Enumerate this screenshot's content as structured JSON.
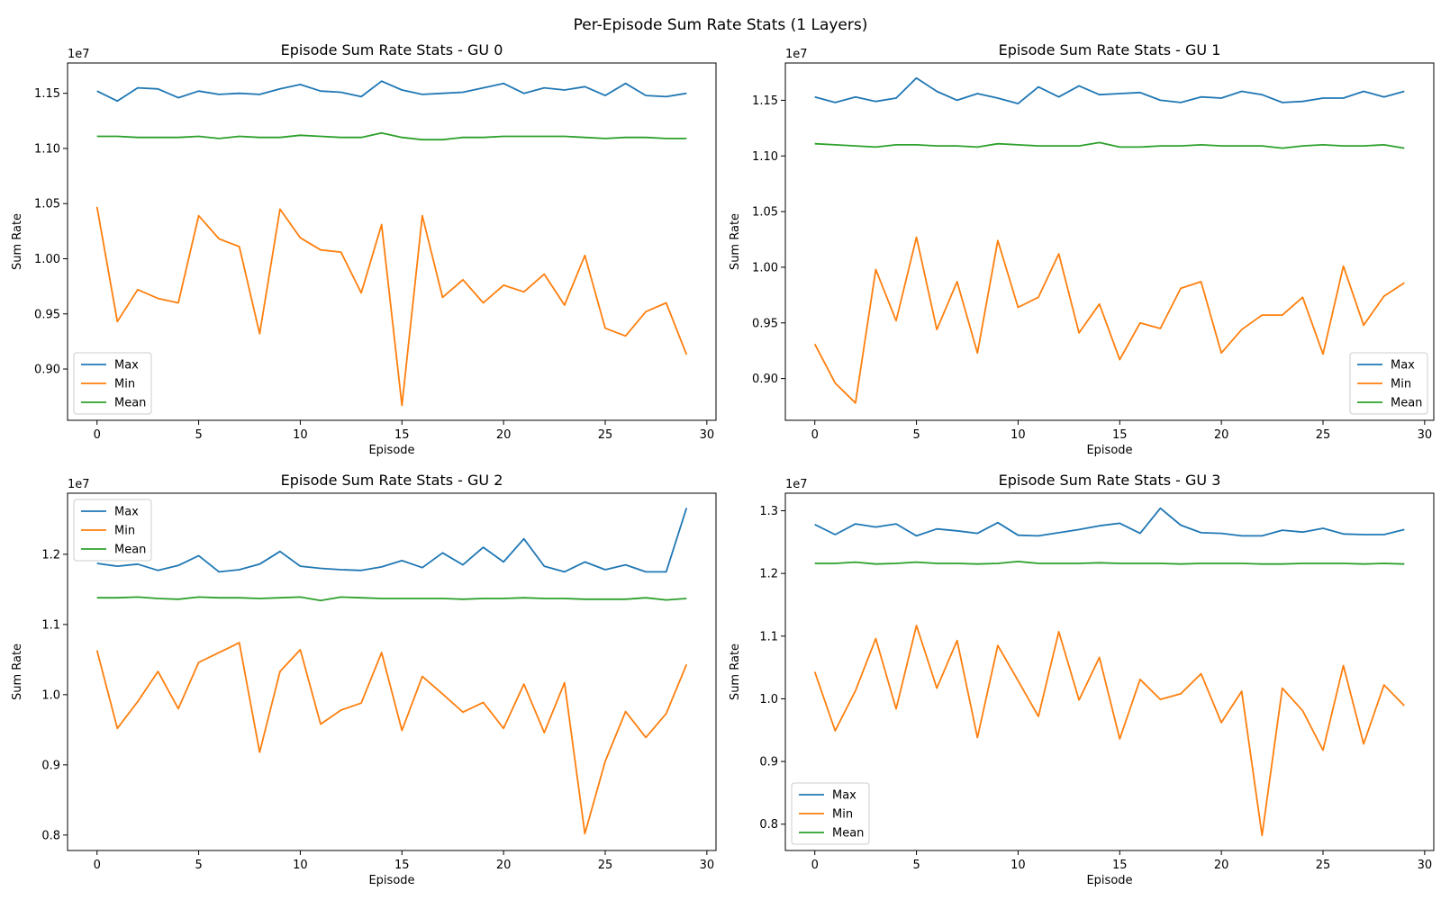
{
  "figure": {
    "suptitle": "Per-Episode Sum Rate Stats (1 Layers)"
  },
  "chart_data": [
    {
      "type": "line",
      "title": "Episode Sum Rate Stats - GU 0",
      "xlabel": "Episode",
      "ylabel": "Sum Rate",
      "offset_text": "1e7",
      "xlim": [
        -1.45,
        30.45
      ],
      "ylim": [
        0.8535,
        1.1775
      ],
      "xticks": [
        0,
        5,
        10,
        15,
        20,
        25,
        30
      ],
      "xtick_labels": [
        "0",
        "5",
        "10",
        "15",
        "20",
        "25",
        "30"
      ],
      "yticks": [
        0.9,
        0.95,
        1.0,
        1.05,
        1.1,
        1.15
      ],
      "ytick_labels": [
        "0.90",
        "0.95",
        "1.00",
        "1.05",
        "1.10",
        "1.15"
      ],
      "legend_loc": "lower left",
      "grid": false,
      "x": [
        0,
        1,
        2,
        3,
        4,
        5,
        6,
        7,
        8,
        9,
        10,
        11,
        12,
        13,
        14,
        15,
        16,
        17,
        18,
        19,
        20,
        21,
        22,
        23,
        24,
        25,
        26,
        27,
        28,
        29
      ],
      "series": [
        {
          "name": "Max",
          "color": "#1f77b4",
          "values": [
            1.152,
            1.143,
            1.155,
            1.154,
            1.146,
            1.152,
            1.149,
            1.15,
            1.149,
            1.154,
            1.158,
            1.152,
            1.151,
            1.147,
            1.161,
            1.153,
            1.149,
            1.15,
            1.151,
            1.155,
            1.159,
            1.15,
            1.155,
            1.153,
            1.156,
            1.148,
            1.159,
            1.148,
            1.147,
            1.15
          ]
        },
        {
          "name": "Min",
          "color": "#ff7f0e",
          "values": [
            1.047,
            0.943,
            0.972,
            0.964,
            0.96,
            1.039,
            1.018,
            1.011,
            0.932,
            1.045,
            1.019,
            1.008,
            1.006,
            0.969,
            1.031,
            0.867,
            1.039,
            0.965,
            0.981,
            0.96,
            0.976,
            0.97,
            0.986,
            0.958,
            1.003,
            0.937,
            0.93,
            0.952,
            0.96,
            0.913
          ]
        },
        {
          "name": "Mean",
          "color": "#2ca02c",
          "values": [
            1.111,
            1.111,
            1.11,
            1.11,
            1.11,
            1.111,
            1.109,
            1.111,
            1.11,
            1.11,
            1.112,
            1.111,
            1.11,
            1.11,
            1.114,
            1.11,
            1.108,
            1.108,
            1.11,
            1.11,
            1.111,
            1.111,
            1.111,
            1.111,
            1.11,
            1.109,
            1.11,
            1.11,
            1.109,
            1.109
          ]
        }
      ]
    },
    {
      "type": "line",
      "title": "Episode Sum Rate Stats - GU 1",
      "xlabel": "Episode",
      "ylabel": "Sum Rate",
      "offset_text": "1e7",
      "xlim": [
        -1.45,
        30.45
      ],
      "ylim": [
        0.8625,
        1.1835
      ],
      "xticks": [
        0,
        5,
        10,
        15,
        20,
        25,
        30
      ],
      "xtick_labels": [
        "0",
        "5",
        "10",
        "15",
        "20",
        "25",
        "30"
      ],
      "yticks": [
        0.9,
        0.95,
        1.0,
        1.05,
        1.1,
        1.15
      ],
      "ytick_labels": [
        "0.90",
        "0.95",
        "1.00",
        "1.05",
        "1.10",
        "1.15"
      ],
      "legend_loc": "lower right",
      "grid": false,
      "x": [
        0,
        1,
        2,
        3,
        4,
        5,
        6,
        7,
        8,
        9,
        10,
        11,
        12,
        13,
        14,
        15,
        16,
        17,
        18,
        19,
        20,
        21,
        22,
        23,
        24,
        25,
        26,
        27,
        28,
        29
      ],
      "series": [
        {
          "name": "Max",
          "color": "#1f77b4",
          "values": [
            1.153,
            1.148,
            1.153,
            1.149,
            1.152,
            1.17,
            1.158,
            1.15,
            1.156,
            1.152,
            1.147,
            1.162,
            1.153,
            1.163,
            1.155,
            1.156,
            1.157,
            1.15,
            1.148,
            1.153,
            1.152,
            1.158,
            1.155,
            1.148,
            1.149,
            1.152,
            1.152,
            1.158,
            1.153,
            1.158
          ]
        },
        {
          "name": "Min",
          "color": "#ff7f0e",
          "values": [
            0.931,
            0.896,
            0.878,
            0.998,
            0.952,
            1.027,
            0.944,
            0.987,
            0.923,
            1.024,
            0.964,
            0.973,
            1.012,
            0.941,
            0.967,
            0.917,
            0.95,
            0.945,
            0.981,
            0.987,
            0.923,
            0.944,
            0.957,
            0.957,
            0.973,
            0.922,
            1.001,
            0.948,
            0.974,
            0.986
          ]
        },
        {
          "name": "Mean",
          "color": "#2ca02c",
          "values": [
            1.111,
            1.11,
            1.109,
            1.108,
            1.11,
            1.11,
            1.109,
            1.109,
            1.108,
            1.111,
            1.11,
            1.109,
            1.109,
            1.109,
            1.112,
            1.108,
            1.108,
            1.109,
            1.109,
            1.11,
            1.109,
            1.109,
            1.109,
            1.107,
            1.109,
            1.11,
            1.109,
            1.109,
            1.11,
            1.107
          ]
        }
      ]
    },
    {
      "type": "line",
      "title": "Episode Sum Rate Stats - GU 2",
      "xlabel": "Episode",
      "ylabel": "Sum Rate",
      "offset_text": "1e7",
      "xlim": [
        -1.45,
        30.45
      ],
      "ylim": [
        0.778,
        1.287
      ],
      "xticks": [
        0,
        5,
        10,
        15,
        20,
        25,
        30
      ],
      "xtick_labels": [
        "0",
        "5",
        "10",
        "15",
        "20",
        "25",
        "30"
      ],
      "yticks": [
        0.8,
        0.9,
        1.0,
        1.1,
        1.2
      ],
      "ytick_labels": [
        "0.8",
        "0.9",
        "1.0",
        "1.1",
        "1.2"
      ],
      "legend_loc": "upper left",
      "grid": false,
      "x": [
        0,
        1,
        2,
        3,
        4,
        5,
        6,
        7,
        8,
        9,
        10,
        11,
        12,
        13,
        14,
        15,
        16,
        17,
        18,
        19,
        20,
        21,
        22,
        23,
        24,
        25,
        26,
        27,
        28,
        29
      ],
      "series": [
        {
          "name": "Max",
          "color": "#1f77b4",
          "values": [
            1.187,
            1.183,
            1.186,
            1.177,
            1.184,
            1.198,
            1.175,
            1.178,
            1.186,
            1.204,
            1.183,
            1.18,
            1.178,
            1.177,
            1.182,
            1.191,
            1.181,
            1.202,
            1.185,
            1.21,
            1.189,
            1.222,
            1.183,
            1.175,
            1.189,
            1.178,
            1.185,
            1.175,
            1.175,
            1.266
          ]
        },
        {
          "name": "Min",
          "color": "#ff7f0e",
          "values": [
            1.063,
            0.952,
            0.99,
            1.033,
            0.98,
            1.046,
            1.06,
            1.074,
            0.918,
            1.033,
            1.064,
            0.958,
            0.978,
            0.988,
            1.06,
            0.949,
            1.026,
            1.001,
            0.975,
            0.989,
            0.952,
            1.015,
            0.946,
            1.017,
            0.802,
            0.905,
            0.976,
            0.939,
            0.973,
            1.043
          ]
        },
        {
          "name": "Mean",
          "color": "#2ca02c",
          "values": [
            1.138,
            1.138,
            1.139,
            1.137,
            1.136,
            1.139,
            1.138,
            1.138,
            1.137,
            1.138,
            1.139,
            1.134,
            1.139,
            1.138,
            1.137,
            1.137,
            1.137,
            1.137,
            1.136,
            1.137,
            1.137,
            1.138,
            1.137,
            1.137,
            1.136,
            1.136,
            1.136,
            1.138,
            1.135,
            1.137
          ]
        }
      ]
    },
    {
      "type": "line",
      "title": "Episode Sum Rate Stats - GU 3",
      "xlabel": "Episode",
      "ylabel": "Sum Rate",
      "offset_text": "1e7",
      "xlim": [
        -1.45,
        30.45
      ],
      "ylim": [
        0.758,
        1.328
      ],
      "xticks": [
        0,
        5,
        10,
        15,
        20,
        25,
        30
      ],
      "xtick_labels": [
        "0",
        "5",
        "10",
        "15",
        "20",
        "25",
        "30"
      ],
      "yticks": [
        0.8,
        0.9,
        1.0,
        1.1,
        1.2,
        1.3
      ],
      "ytick_labels": [
        "0.8",
        "0.9",
        "1.0",
        "1.1",
        "1.2",
        "1.3"
      ],
      "legend_loc": "lower left",
      "grid": false,
      "x": [
        0,
        1,
        2,
        3,
        4,
        5,
        6,
        7,
        8,
        9,
        10,
        11,
        12,
        13,
        14,
        15,
        16,
        17,
        18,
        19,
        20,
        21,
        22,
        23,
        24,
        25,
        26,
        27,
        28,
        29
      ],
      "series": [
        {
          "name": "Max",
          "color": "#1f77b4",
          "values": [
            1.278,
            1.262,
            1.279,
            1.274,
            1.279,
            1.26,
            1.271,
            1.268,
            1.264,
            1.281,
            1.261,
            1.26,
            1.265,
            1.27,
            1.276,
            1.28,
            1.264,
            1.304,
            1.277,
            1.265,
            1.264,
            1.26,
            1.26,
            1.269,
            1.266,
            1.272,
            1.263,
            1.262,
            1.262,
            1.27
          ]
        },
        {
          "name": "Min",
          "color": "#ff7f0e",
          "values": [
            1.043,
            0.949,
            1.013,
            1.096,
            0.984,
            1.117,
            1.017,
            1.093,
            0.938,
            1.085,
            1.029,
            0.972,
            1.107,
            0.998,
            1.066,
            0.936,
            1.031,
            0.999,
            1.008,
            1.04,
            0.962,
            1.012,
            0.782,
            1.017,
            0.981,
            0.918,
            1.053,
            0.928,
            1.022,
            0.989
          ]
        },
        {
          "name": "Mean",
          "color": "#2ca02c",
          "values": [
            1.216,
            1.216,
            1.218,
            1.215,
            1.216,
            1.218,
            1.216,
            1.216,
            1.215,
            1.216,
            1.219,
            1.216,
            1.216,
            1.216,
            1.217,
            1.216,
            1.216,
            1.216,
            1.215,
            1.216,
            1.216,
            1.216,
            1.215,
            1.215,
            1.216,
            1.216,
            1.216,
            1.215,
            1.216,
            1.215
          ]
        }
      ]
    }
  ]
}
